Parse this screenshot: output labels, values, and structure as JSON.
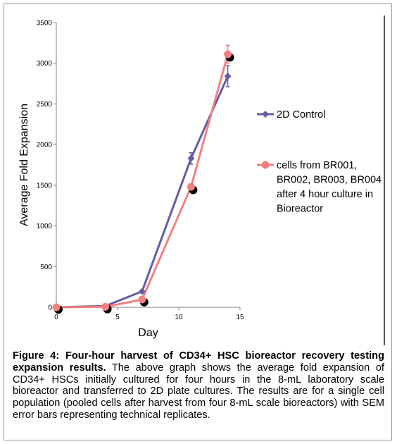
{
  "chart_data": {
    "type": "line",
    "title": "",
    "xlabel": "Day",
    "ylabel": "Average Fold Expansion",
    "xlim": [
      0,
      15
    ],
    "ylim": [
      0,
      3500
    ],
    "x_ticks": [
      "0",
      "5",
      "10",
      "15"
    ],
    "y_ticks": [
      "0",
      "500",
      "1000",
      "1500",
      "2000",
      "2500",
      "3000",
      "3500"
    ],
    "grid": false,
    "legend_position": "right",
    "series": [
      {
        "name": "2D Control",
        "color": "#6a5aa0",
        "marker": "diamond",
        "x": [
          0,
          4,
          7,
          11,
          14
        ],
        "y": [
          0,
          15,
          195,
          1830,
          2840
        ],
        "error": [
          0,
          0,
          0,
          70,
          130
        ]
      },
      {
        "name": "cells from BR001, BR002, BR003, BR004 after 4 hour culture in Bioreactor",
        "color": "#f28080",
        "marker": "circle",
        "x": [
          0,
          4,
          7,
          11,
          14
        ],
        "y": [
          0,
          5,
          95,
          1480,
          3110
        ],
        "error": [
          0,
          0,
          0,
          0,
          110
        ]
      }
    ],
    "legend_lines": [
      [
        "2D Control"
      ],
      [
        "cells from BR001,",
        "BR002, BR003, BR004",
        "after 4 hour culture in",
        "Bioreactor"
      ]
    ],
    "overlay_points": {
      "color": "#000000",
      "x": [
        0,
        4,
        7,
        11,
        14
      ],
      "y": [
        -10,
        -5,
        80,
        1460,
        3090
      ]
    }
  },
  "caption": {
    "bold": "Figure 4: Four-hour harvest of CD34+ HSC bioreactor recovery testing expansion results.",
    "text": " The above graph shows the average fold expansion of CD34+ HSCs initially cultured for four hours in the 8-mL laboratory scale bioreactor and transferred to 2D plate cultures.  The results are for a single cell population (pooled cells after harvest from four 8-mL scale bioreactors) with SEM error bars representing technical replicates."
  }
}
